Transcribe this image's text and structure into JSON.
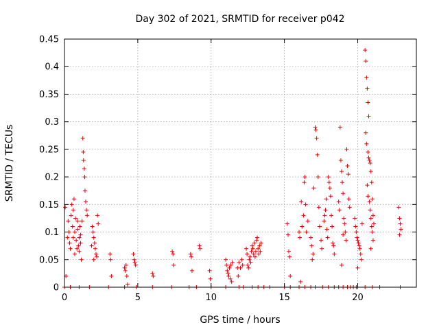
{
  "chart_data": {
    "type": "scatter",
    "title": "Day 302 of 2021, SRMTID for receiver p042",
    "xlabel": "GPS time / hours",
    "ylabel": "SRMTID / TECUs",
    "xlim": [
      0,
      24
    ],
    "ylim": [
      0,
      0.45
    ],
    "xticks": [
      0,
      5,
      10,
      15,
      20
    ],
    "yticks": [
      0,
      0.05,
      0.1,
      0.15,
      0.2,
      0.25,
      0.3,
      0.35,
      0.4,
      0.45
    ],
    "xtick_labels": [
      "0",
      "5",
      "10",
      "15",
      "20"
    ],
    "ytick_labels": [
      "0",
      "0.05",
      "0.1",
      "0.15",
      "0.2",
      "0.25",
      "0.3",
      "0.35",
      "0.4",
      "0.45"
    ],
    "grid": true,
    "marker": "+",
    "color": "#e00000",
    "series": [
      {
        "name": "SRMTID",
        "points": [
          [
            0.05,
            0.145
          ],
          [
            0.1,
            0.02
          ],
          [
            0.2,
            0.09
          ],
          [
            0.25,
            0.12
          ],
          [
            0.3,
            0.1
          ],
          [
            0.35,
            0.08
          ],
          [
            0.4,
            0.07
          ],
          [
            0.45,
            0.13
          ],
          [
            0.5,
            0.15
          ],
          [
            0.55,
            0.11
          ],
          [
            0.6,
            0.09
          ],
          [
            0.65,
            0.16
          ],
          [
            0.7,
            0.1
          ],
          [
            0.75,
            0.125
          ],
          [
            0.8,
            0.085
          ],
          [
            0.85,
            0.07
          ],
          [
            0.9,
            0.105
          ],
          [
            0.95,
            0.075
          ],
          [
            1.0,
            0.065
          ],
          [
            1.05,
            0.11
          ],
          [
            1.1,
            0.095
          ],
          [
            1.15,
            0.05
          ],
          [
            1.2,
            0.12
          ],
          [
            1.25,
            0.27
          ],
          [
            1.28,
            0.245
          ],
          [
            1.3,
            0.23
          ],
          [
            1.35,
            0.215
          ],
          [
            1.38,
            0.2
          ],
          [
            1.4,
            0.175
          ],
          [
            1.45,
            0.155
          ],
          [
            1.5,
            0.14
          ],
          [
            1.55,
            0.13
          ],
          [
            0.6,
            0.14
          ],
          [
            0.7,
            0.06
          ],
          [
            0.9,
            0.12
          ],
          [
            1.0,
            0.09
          ],
          [
            1.1,
            0.08
          ],
          [
            1.9,
            0.11
          ],
          [
            1.95,
            0.1
          ],
          [
            2.0,
            0.09
          ],
          [
            2.05,
            0.08
          ],
          [
            2.1,
            0.07
          ],
          [
            2.15,
            0.06
          ],
          [
            2.2,
            0.055
          ],
          [
            2.25,
            0.13
          ],
          [
            2.3,
            0.115
          ],
          [
            1.85,
            0.075
          ],
          [
            2.0,
            0.05
          ],
          [
            3.1,
            0.06
          ],
          [
            3.15,
            0.05
          ],
          [
            3.2,
            0.02
          ],
          [
            4.1,
            0.035
          ],
          [
            4.15,
            0.03
          ],
          [
            4.2,
            0.04
          ],
          [
            4.25,
            0.02
          ],
          [
            4.3,
            0.005
          ],
          [
            4.7,
            0.06
          ],
          [
            4.75,
            0.05
          ],
          [
            4.8,
            0.045
          ],
          [
            4.85,
            0.04
          ],
          [
            6.0,
            0.025
          ],
          [
            6.05,
            0.02
          ],
          [
            7.35,
            0.065
          ],
          [
            7.4,
            0.06
          ],
          [
            7.45,
            0.04
          ],
          [
            8.6,
            0.06
          ],
          [
            8.65,
            0.055
          ],
          [
            8.7,
            0.03
          ],
          [
            9.2,
            0.075
          ],
          [
            9.25,
            0.07
          ],
          [
            9.9,
            0.03
          ],
          [
            9.95,
            0.015
          ],
          [
            11.0,
            0.05
          ],
          [
            11.05,
            0.04
          ],
          [
            11.1,
            0.03
          ],
          [
            11.15,
            0.025
          ],
          [
            11.2,
            0.02
          ],
          [
            11.25,
            0.035
          ],
          [
            11.3,
            0.015
          ],
          [
            11.35,
            0.04
          ],
          [
            11.4,
            0.01
          ],
          [
            11.45,
            0.045
          ],
          [
            11.8,
            0.035
          ],
          [
            11.85,
            0.02
          ],
          [
            11.9,
            0.045
          ],
          [
            12.0,
            0.035
          ],
          [
            12.1,
            0.05
          ],
          [
            12.15,
            0.04
          ],
          [
            12.4,
            0.07
          ],
          [
            12.45,
            0.06
          ],
          [
            12.5,
            0.04
          ],
          [
            12.55,
            0.035
          ],
          [
            12.6,
            0.05
          ],
          [
            12.65,
            0.055
          ],
          [
            12.7,
            0.045
          ],
          [
            12.75,
            0.065
          ],
          [
            12.8,
            0.075
          ],
          [
            12.85,
            0.07
          ],
          [
            12.9,
            0.06
          ],
          [
            12.95,
            0.08
          ],
          [
            13.0,
            0.055
          ],
          [
            13.05,
            0.065
          ],
          [
            13.1,
            0.085
          ],
          [
            13.15,
            0.09
          ],
          [
            13.2,
            0.07
          ],
          [
            13.25,
            0.06
          ],
          [
            13.3,
            0.075
          ],
          [
            13.35,
            0.065
          ],
          [
            13.4,
            0.08
          ],
          [
            15.2,
            0.115
          ],
          [
            15.25,
            0.095
          ],
          [
            15.3,
            0.065
          ],
          [
            15.35,
            0.055
          ],
          [
            15.4,
            0.02
          ],
          [
            16.0,
            0.1
          ],
          [
            16.05,
            0.09
          ],
          [
            16.1,
            0.01
          ],
          [
            16.15,
            0.155
          ],
          [
            16.2,
            0.11
          ],
          [
            16.3,
            0.13
          ],
          [
            16.35,
            0.19
          ],
          [
            16.4,
            0.2
          ],
          [
            16.45,
            0.15
          ],
          [
            16.5,
            0.1
          ],
          [
            16.6,
            0.12
          ],
          [
            16.8,
            0.09
          ],
          [
            16.85,
            0.075
          ],
          [
            16.9,
            0.05
          ],
          [
            16.95,
            0.06
          ],
          [
            17.0,
            0.18
          ],
          [
            17.1,
            0.29
          ],
          [
            17.15,
            0.285
          ],
          [
            17.2,
            0.27
          ],
          [
            17.25,
            0.24
          ],
          [
            17.3,
            0.2
          ],
          [
            17.35,
            0.145
          ],
          [
            17.4,
            0.11
          ],
          [
            17.5,
            0.085
          ],
          [
            17.55,
            0.07
          ],
          [
            17.7,
            0.12
          ],
          [
            17.75,
            0.13
          ],
          [
            17.8,
            0.14
          ],
          [
            17.85,
            0.16
          ],
          [
            17.9,
            0.105
          ],
          [
            17.95,
            0.09
          ],
          [
            18.0,
            0.2
          ],
          [
            18.05,
            0.19
          ],
          [
            18.1,
            0.18
          ],
          [
            18.15,
            0.165
          ],
          [
            18.2,
            0.13
          ],
          [
            18.25,
            0.11
          ],
          [
            18.3,
            0.08
          ],
          [
            18.35,
            0.075
          ],
          [
            18.4,
            0.06
          ],
          [
            18.7,
            0.155
          ],
          [
            18.75,
            0.14
          ],
          [
            18.8,
            0.29
          ],
          [
            18.85,
            0.23
          ],
          [
            18.9,
            0.21
          ],
          [
            18.95,
            0.19
          ],
          [
            19.0,
            0.17
          ],
          [
            19.05,
            0.125
          ],
          [
            19.1,
            0.115
          ],
          [
            19.15,
            0.1
          ],
          [
            19.2,
            0.085
          ],
          [
            19.25,
            0.25
          ],
          [
            19.3,
            0.22
          ],
          [
            19.35,
            0.205
          ],
          [
            19.4,
            0.16
          ],
          [
            19.45,
            0.145
          ],
          [
            18.9,
            0.04
          ],
          [
            19.0,
            0.095
          ],
          [
            19.8,
            0.125
          ],
          [
            19.85,
            0.11
          ],
          [
            19.9,
            0.1
          ],
          [
            19.95,
            0.09
          ],
          [
            20.0,
            0.085
          ],
          [
            20.05,
            0.08
          ],
          [
            20.1,
            0.075
          ],
          [
            20.15,
            0.07
          ],
          [
            20.2,
            0.06
          ],
          [
            20.25,
            0.05
          ],
          [
            20.3,
            0.115
          ],
          [
            20.0,
            0.035
          ],
          [
            20.5,
            0.43
          ],
          [
            20.55,
            0.41
          ],
          [
            20.6,
            0.38
          ],
          [
            20.65,
            0.36
          ],
          [
            20.7,
            0.335
          ],
          [
            20.75,
            0.31
          ],
          [
            20.55,
            0.28
          ],
          [
            20.6,
            0.26
          ],
          [
            20.7,
            0.245
          ],
          [
            20.75,
            0.235
          ],
          [
            20.8,
            0.23
          ],
          [
            20.85,
            0.225
          ],
          [
            20.9,
            0.21
          ],
          [
            20.95,
            0.19
          ],
          [
            20.65,
            0.185
          ],
          [
            20.7,
            0.165
          ],
          [
            20.8,
            0.155
          ],
          [
            20.85,
            0.14
          ],
          [
            20.9,
            0.125
          ],
          [
            20.95,
            0.11
          ],
          [
            21.0,
            0.1
          ],
          [
            21.05,
            0.085
          ],
          [
            20.9,
            0.07
          ],
          [
            21.0,
            0.16
          ],
          [
            21.05,
            0.13
          ],
          [
            21.1,
            0.115
          ],
          [
            22.8,
            0.145
          ],
          [
            22.85,
            0.125
          ],
          [
            22.9,
            0.115
          ],
          [
            22.95,
            0.105
          ],
          [
            22.85,
            0.095
          ],
          [
            0.0,
            0.0
          ],
          [
            0.4,
            0.0
          ],
          [
            1.0,
            0.0
          ],
          [
            1.7,
            0.0
          ],
          [
            3.0,
            0.0
          ],
          [
            4.1,
            0.0
          ],
          [
            4.9,
            0.0
          ],
          [
            6.0,
            0.0
          ],
          [
            7.3,
            0.0
          ],
          [
            8.5,
            0.0
          ],
          [
            9.0,
            0.0
          ],
          [
            10.0,
            0.0
          ],
          [
            11.0,
            0.0
          ],
          [
            11.9,
            0.0
          ],
          [
            12.2,
            0.0
          ],
          [
            12.8,
            0.0
          ],
          [
            13.2,
            0.0
          ],
          [
            13.6,
            0.0
          ],
          [
            14.0,
            0.0
          ],
          [
            15.0,
            0.0
          ],
          [
            15.4,
            0.0
          ],
          [
            16.0,
            0.0
          ],
          [
            16.4,
            0.0
          ],
          [
            16.8,
            0.0
          ],
          [
            17.1,
            0.0
          ],
          [
            17.6,
            0.0
          ],
          [
            18.0,
            0.0
          ],
          [
            18.4,
            0.0
          ],
          [
            18.7,
            0.0
          ],
          [
            19.0,
            0.0
          ],
          [
            19.3,
            0.0
          ],
          [
            19.5,
            0.0
          ],
          [
            19.7,
            0.0
          ],
          [
            19.9,
            0.0
          ],
          [
            20.0,
            0.0
          ],
          [
            20.5,
            0.0
          ],
          [
            21.0,
            0.0
          ],
          [
            21.5,
            0.0
          ],
          [
            22.9,
            0.0
          ]
        ]
      }
    ]
  }
}
